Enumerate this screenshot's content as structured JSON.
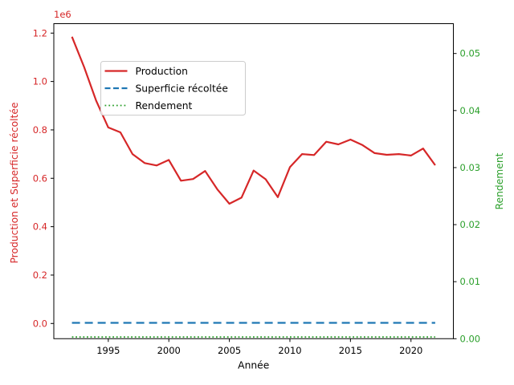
{
  "figure": {
    "background": "#ffffff"
  },
  "colors": {
    "production": "#d62728",
    "superficie": "#1f77b4",
    "rendement": "#2ca02c",
    "axis": "#000000",
    "legend_border": "#cccccc"
  },
  "chart_data": {
    "type": "line",
    "title": "",
    "xlabel": "Année",
    "ylabel_left": "Production et Superficie récoltée",
    "ylabel_right": "Rendement",
    "offset_text": "1e6",
    "grid": false,
    "legend_position": "upper-left",
    "xlim": [
      1990.5,
      2023.5
    ],
    "ylim_left": [
      -63000,
      1239000
    ],
    "ylim_right": [
      0,
      0.05523
    ],
    "x": [
      1992,
      1993,
      1994,
      1995,
      1996,
      1997,
      1998,
      1999,
      2000,
      2001,
      2002,
      2003,
      2004,
      2005,
      2006,
      2007,
      2008,
      2009,
      2010,
      2011,
      2012,
      2013,
      2014,
      2015,
      2016,
      2017,
      2018,
      2019,
      2020,
      2021,
      2022
    ],
    "series": [
      {
        "name": "Superficie récoltée",
        "axis": "left",
        "color": "#1f77b4",
        "style": "dashed",
        "values": [
          2500,
          2500,
          2500,
          2500,
          2500,
          2500,
          2500,
          2500,
          2500,
          2500,
          2500,
          2500,
          2500,
          2500,
          2500,
          2500,
          2500,
          2500,
          2500,
          2500,
          2500,
          2500,
          2500,
          2500,
          2500,
          2500,
          2500,
          2500,
          2500,
          2500,
          2500
        ]
      },
      {
        "name": "Rendement",
        "axis": "right",
        "color": "#2ca02c",
        "style": "dotted",
        "values": [
          0.0003,
          0.0003,
          0.0003,
          0.0003,
          0.0003,
          0.0003,
          0.0003,
          0.0003,
          0.0003,
          0.0003,
          0.0003,
          0.0003,
          0.0003,
          0.0003,
          0.0003,
          0.0003,
          0.0003,
          0.0003,
          0.0003,
          0.0003,
          0.0003,
          0.0003,
          0.0003,
          0.0003,
          0.0003,
          0.0003,
          0.0003,
          0.0003,
          0.0003,
          0.0003,
          0.0003
        ]
      },
      {
        "name": "Production",
        "axis": "left",
        "color": "#d62728",
        "style": "solid",
        "values": [
          1185000,
          1060000,
          920000,
          810000,
          790000,
          700000,
          663000,
          653000,
          676000,
          590000,
          597000,
          630000,
          555000,
          495000,
          520000,
          632000,
          596000,
          522000,
          646000,
          700000,
          696000,
          751000,
          740000,
          760000,
          737000,
          704000,
          697000,
          700000,
          694000,
          723000,
          654000
        ]
      }
    ],
    "xticks": {
      "values": [
        1995,
        2000,
        2005,
        2010,
        2015,
        2020
      ],
      "labels": [
        "1995",
        "2000",
        "2005",
        "2010",
        "2015",
        "2020"
      ]
    },
    "yticks_left": {
      "values": [
        0,
        200000,
        400000,
        600000,
        800000,
        1000000,
        1200000
      ],
      "labels": [
        "0.0",
        "0.2",
        "0.4",
        "0.6",
        "0.8",
        "1.0",
        "1.2"
      ]
    },
    "yticks_right": {
      "values": [
        0,
        0.01,
        0.02,
        0.03,
        0.04,
        0.05
      ],
      "labels": [
        "0.00",
        "0.01",
        "0.02",
        "0.03",
        "0.04",
        "0.05"
      ]
    },
    "legend": {
      "entries": [
        {
          "label": "Production",
          "color": "#d62728",
          "style": "solid"
        },
        {
          "label": "Superficie récoltée",
          "color": "#1f77b4",
          "style": "dashed"
        },
        {
          "label": "Rendement",
          "color": "#2ca02c",
          "style": "dotted"
        }
      ]
    }
  }
}
